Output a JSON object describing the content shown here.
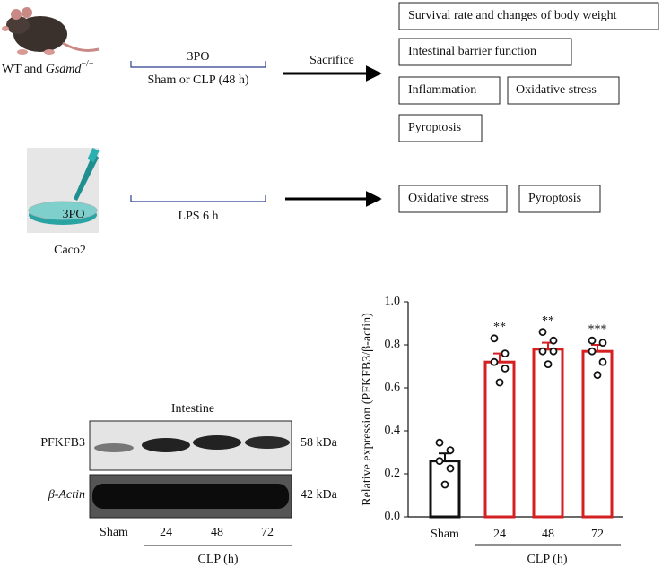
{
  "diagram": {
    "in_vivo": {
      "label": {
        "prefix": "WT and",
        "gene": "Gsdmd",
        "superscript": "−/−"
      },
      "treatment_top": "3PO",
      "treatment_bottom": "Sham or CLP (48 h)",
      "arrow_label": "Sacrifice",
      "outcomes": [
        "Survival rate and changes of body weight",
        "Intestinal barrier function",
        "Inflammation",
        "Oxidative stress",
        "Pyroptosis"
      ]
    },
    "in_vitro": {
      "dish_label": "3PO",
      "label": "Caco2",
      "treatment": "LPS 6 h",
      "outcomes": [
        "Oxidative stress",
        "Pyroptosis"
      ]
    }
  },
  "blot": {
    "title": "Intestine",
    "rows": [
      {
        "name": "PFKFB3",
        "size": "58 kDa"
      },
      {
        "name": "β-Actin",
        "size": "42 kDa"
      }
    ],
    "lanes": [
      "Sham",
      "24",
      "48",
      "72"
    ],
    "group_label": "CLP (h)"
  },
  "chart_data": {
    "type": "bar",
    "ylabel": "Relative expression (PFKFB3/β-actin)",
    "categories": [
      "Sham",
      "24",
      "48",
      "72"
    ],
    "group_label": "CLP (h)",
    "values": [
      0.26,
      0.72,
      0.78,
      0.77
    ],
    "errors": [
      0.035,
      0.04,
      0.03,
      0.03
    ],
    "points": [
      [
        0.345,
        0.31,
        0.26,
        0.225,
        0.15
      ],
      [
        0.83,
        0.76,
        0.72,
        0.69,
        0.625
      ],
      [
        0.86,
        0.82,
        0.77,
        0.77,
        0.71
      ],
      [
        0.82,
        0.81,
        0.77,
        0.72,
        0.66
      ]
    ],
    "significance": [
      null,
      "**",
      "**",
      "***"
    ],
    "colors": [
      "#111111",
      "#d42020",
      "#d42020",
      "#d42020"
    ],
    "ylim": [
      0,
      1
    ],
    "yticks": [
      {
        "value": 0,
        "label": "0.0"
      },
      0.2,
      0.4,
      0.6,
      0.8,
      {
        "value": 1,
        "label": "1.0"
      }
    ]
  }
}
